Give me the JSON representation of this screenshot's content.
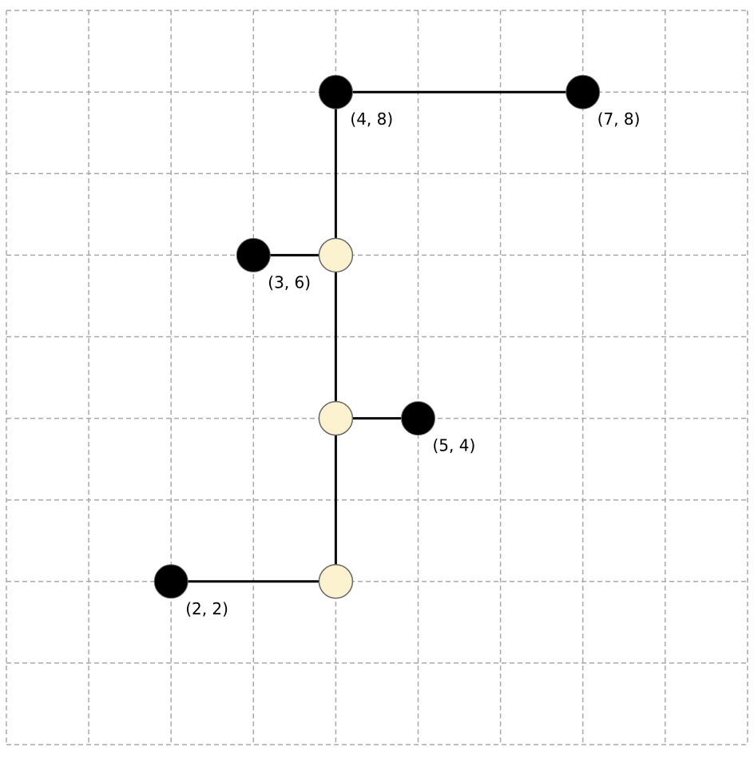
{
  "grid": {
    "x_range": [
      0,
      9
    ],
    "y_range": [
      0,
      9
    ]
  },
  "colors": {
    "terminal": "#000000",
    "steiner": "#fdf2d0",
    "steiner_stroke": "#666666",
    "grid": "#a8a8a8"
  },
  "terminals": [
    {
      "id": "t-4-8",
      "x": 4,
      "y": 8,
      "label": "(4, 8)"
    },
    {
      "id": "t-7-8",
      "x": 7,
      "y": 8,
      "label": "(7, 8)"
    },
    {
      "id": "t-3-6",
      "x": 3,
      "y": 6,
      "label": "(3, 6)"
    },
    {
      "id": "t-5-4",
      "x": 5,
      "y": 4,
      "label": "(5, 4)"
    },
    {
      "id": "t-2-2",
      "x": 2,
      "y": 2,
      "label": "(2, 2)"
    }
  ],
  "steiner_points": [
    {
      "id": "s-4-6",
      "x": 4,
      "y": 6
    },
    {
      "id": "s-4-4",
      "x": 4,
      "y": 4
    },
    {
      "id": "s-4-2",
      "x": 4,
      "y": 2
    }
  ],
  "edges": [
    {
      "from": [
        4,
        8
      ],
      "to": [
        7,
        8
      ]
    },
    {
      "from": [
        4,
        8
      ],
      "to": [
        4,
        6
      ]
    },
    {
      "from": [
        3,
        6
      ],
      "to": [
        4,
        6
      ]
    },
    {
      "from": [
        4,
        6
      ],
      "to": [
        4,
        4
      ]
    },
    {
      "from": [
        4,
        4
      ],
      "to": [
        5,
        4
      ]
    },
    {
      "from": [
        4,
        4
      ],
      "to": [
        4,
        2
      ]
    },
    {
      "from": [
        2,
        2
      ],
      "to": [
        4,
        2
      ]
    }
  ]
}
